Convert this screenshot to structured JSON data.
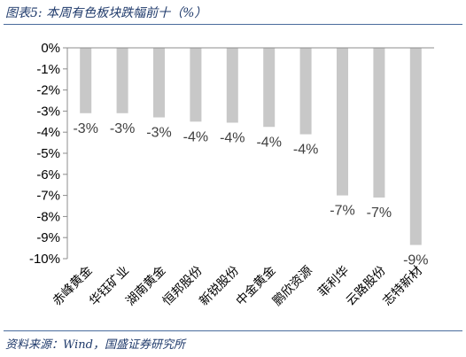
{
  "header": {
    "title": "图表5: 本周有色板块跌幅前十（%）"
  },
  "footer": {
    "source": "资料来源：Wind，国盛证券研究所"
  },
  "chart_data": {
    "type": "bar",
    "categories": [
      "赤峰黄金",
      "华钰矿业",
      "湖南黄金",
      "恒邦股份",
      "新锐股份",
      "中金黄金",
      "鹏欣资源",
      "菲利华",
      "云路股份",
      "志特新材"
    ],
    "values": [
      -3.1,
      -3.1,
      -3.3,
      -3.5,
      -3.55,
      -3.75,
      -4.1,
      -7.0,
      -7.1,
      -9.35
    ],
    "data_labels": [
      "-3%",
      "-3%",
      "-3%",
      "-4%",
      "-4%",
      "-4%",
      "-4%",
      "-7%",
      "-7%",
      "-9%"
    ],
    "ylim": [
      -10,
      0
    ],
    "yticks": [
      0,
      -1,
      -2,
      -3,
      -4,
      -5,
      -6,
      -7,
      -8,
      -9,
      -10
    ],
    "ytick_labels": [
      "0%",
      "-1%",
      "-2%",
      "-3%",
      "-4%",
      "-5%",
      "-6%",
      "-7%",
      "-8%",
      "-9%",
      "-10%"
    ],
    "bar_color": "#c8c8c8",
    "axis_color": "#8c8c8c",
    "grid": false,
    "legend": "none"
  }
}
